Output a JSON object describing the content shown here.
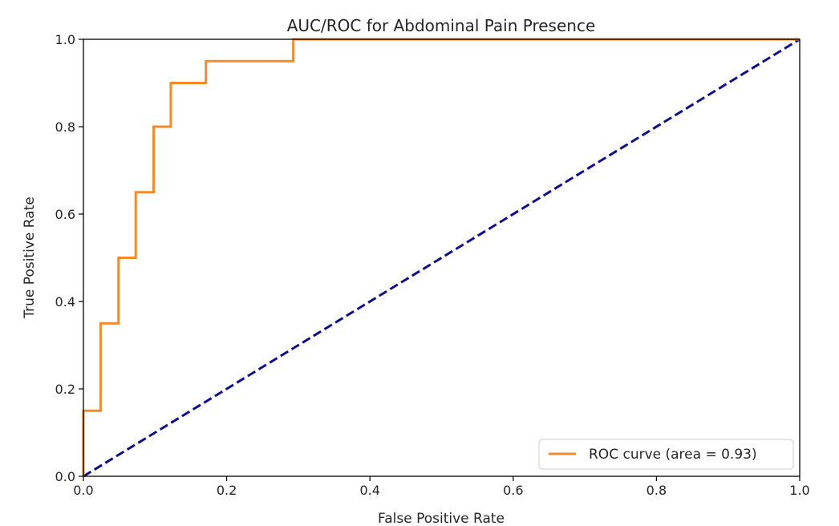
{
  "chart_data": {
    "type": "line",
    "title": "AUC/ROC for Abdominal Pain Presence",
    "xlabel": "False Positive Rate",
    "ylabel": "True Positive Rate",
    "xlim": [
      0.0,
      1.0
    ],
    "ylim": [
      0.0,
      1.0
    ],
    "xticks": [
      0.0,
      0.2,
      0.4,
      0.6,
      0.8,
      1.0
    ],
    "yticks": [
      0.0,
      0.2,
      0.4,
      0.6,
      0.8,
      1.0
    ],
    "xtick_labels": [
      "0.0",
      "0.2",
      "0.4",
      "0.6",
      "0.8",
      "1.0"
    ],
    "ytick_labels": [
      "0.0",
      "0.2",
      "0.4",
      "0.6",
      "0.8",
      "1.0"
    ],
    "grid": false,
    "legend_position": "lower-right",
    "series": [
      {
        "name": "ROC curve (area = 0.93)",
        "color": "#f58a2a",
        "style": "solid",
        "x": [
          0.0,
          0.0,
          0.024,
          0.024,
          0.049,
          0.049,
          0.073,
          0.073,
          0.098,
          0.098,
          0.122,
          0.122,
          0.171,
          0.171,
          0.293,
          0.293,
          1.0
        ],
        "y": [
          0.0,
          0.15,
          0.15,
          0.35,
          0.35,
          0.5,
          0.5,
          0.65,
          0.65,
          0.8,
          0.8,
          0.9,
          0.9,
          0.95,
          0.95,
          1.0,
          1.0
        ]
      },
      {
        "color": "#0f0f8a",
        "style": "dashed",
        "x": [
          0.0,
          1.0
        ],
        "y": [
          0.0,
          1.0
        ]
      }
    ]
  }
}
